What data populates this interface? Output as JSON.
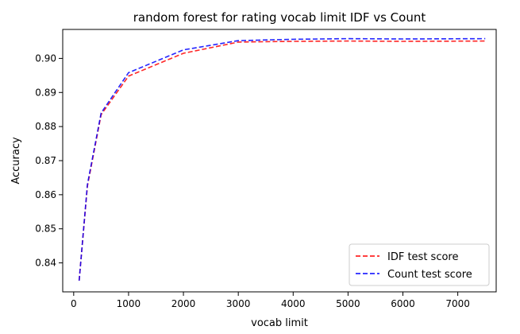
{
  "chart_data": {
    "type": "line",
    "title": "random forest for rating vocab limit IDF vs Count",
    "xlabel": "vocab limit",
    "ylabel": "Accuracy",
    "xlim": [
      -200,
      7700
    ],
    "ylim": [
      0.8315,
      0.9085
    ],
    "xticks": [
      0,
      1000,
      2000,
      3000,
      4000,
      5000,
      6000,
      7000
    ],
    "yticks": [
      0.84,
      0.85,
      0.86,
      0.87,
      0.88,
      0.89,
      0.9
    ],
    "ytick_labels": [
      "0.84",
      "0.85",
      "0.86",
      "0.87",
      "0.88",
      "0.89",
      "0.90"
    ],
    "grid": false,
    "legend_position": "lower-right",
    "x": [
      100,
      250,
      500,
      1000,
      2000,
      3000,
      4000,
      5000,
      6000,
      7500
    ],
    "series": [
      {
        "name": "IDF test score",
        "color": "#ff0000",
        "style": "dashed",
        "values": [
          0.8348,
          0.8625,
          0.8835,
          0.8948,
          0.9015,
          0.9048,
          0.905,
          0.9051,
          0.905,
          0.9051
        ]
      },
      {
        "name": "Count test score",
        "color": "#0000ff",
        "style": "dashed",
        "values": [
          0.8348,
          0.863,
          0.884,
          0.8958,
          0.9025,
          0.9052,
          0.9056,
          0.9058,
          0.9057,
          0.9058
        ]
      }
    ]
  }
}
